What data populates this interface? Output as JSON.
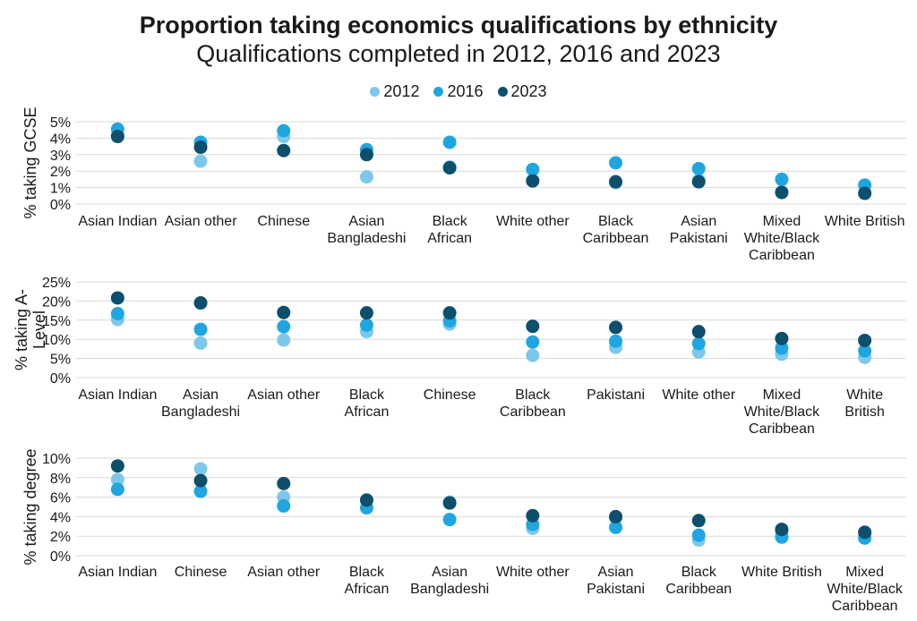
{
  "chart_data": {
    "title": "Proportion taking economics qualifications by ethnicity",
    "subtitle": "Qualifications completed in 2012, 2016 and 2023",
    "legend_position": "top-center",
    "colors": {
      "2012": "#7dc8ea",
      "2016": "#1fa6e0",
      "2023": "#0d4f6c"
    },
    "series_names": [
      "2012",
      "2016",
      "2023"
    ],
    "panels": [
      {
        "type": "scatter",
        "ylabel": "% taking GCSE",
        "ylim": [
          0,
          5
        ],
        "yticks": [
          0,
          1,
          2,
          3,
          4,
          5
        ],
        "ytick_labels": [
          "0%",
          "1%",
          "2%",
          "3%",
          "4%",
          "5%"
        ],
        "grid": true,
        "categories": [
          "Asian Indian",
          "Asian other",
          "Chinese",
          "Asian Bangladeshi",
          "Black African",
          "White other",
          "Black Caribbean",
          "Asian Pakistani",
          "Mixed White/Black Caribbean",
          "White British"
        ],
        "category_lines": [
          [
            "Asian Indian"
          ],
          [
            "Asian other"
          ],
          [
            "Chinese"
          ],
          [
            "Asian",
            "Bangladeshi"
          ],
          [
            "Black",
            "African"
          ],
          [
            "White other"
          ],
          [
            "Black",
            "Caribbean"
          ],
          [
            "Asian",
            "Pakistani"
          ],
          [
            "Mixed",
            "White/Black",
            "Caribbean"
          ],
          [
            "White British"
          ]
        ],
        "series": [
          {
            "name": "2012",
            "values": [
              4.2,
              2.6,
              4.1,
              1.65,
              2.25,
              1.45,
              1.3,
              1.45,
              0.75,
              0.65
            ]
          },
          {
            "name": "2016",
            "values": [
              4.55,
              3.75,
              4.45,
              3.3,
              3.75,
              2.1,
              2.5,
              2.15,
              1.5,
              1.15
            ]
          },
          {
            "name": "2023",
            "values": [
              4.1,
              3.45,
              3.25,
              3.0,
              2.2,
              1.4,
              1.35,
              1.35,
              0.7,
              0.65
            ]
          }
        ]
      },
      {
        "type": "scatter",
        "ylabel": "% taking A-Level",
        "ylabel_lines": [
          "% taking A-",
          "Level"
        ],
        "ylim": [
          0,
          25
        ],
        "yticks": [
          0,
          5,
          10,
          15,
          20,
          25
        ],
        "ytick_labels": [
          "0%",
          "5%",
          "10%",
          "15%",
          "20%",
          "25%"
        ],
        "grid": true,
        "categories": [
          "Asian Indian",
          "Asian Bangladeshi",
          "Asian other",
          "Black African",
          "Chinese",
          "Black Caribbean",
          "Pakistani",
          "White other",
          "Mixed White/Black Caribbean",
          "White British"
        ],
        "category_lines": [
          [
            "Asian Indian"
          ],
          [
            "Asian",
            "Bangladeshi"
          ],
          [
            "Asian other"
          ],
          [
            "Black",
            "African"
          ],
          [
            "Chinese"
          ],
          [
            "Black",
            "Caribbean"
          ],
          [
            "Pakistani"
          ],
          [
            "White other"
          ],
          [
            "Mixed",
            "White/Black",
            "Caribbean"
          ],
          [
            "White",
            "British"
          ]
        ],
        "series": [
          {
            "name": "2012",
            "values": [
              15.2,
              9.0,
              9.8,
              12.0,
              14.0,
              5.8,
              7.9,
              6.7,
              6.1,
              5.3
            ]
          },
          {
            "name": "2016",
            "values": [
              16.7,
              12.6,
              13.3,
              13.7,
              14.8,
              9.3,
              9.5,
              8.9,
              7.7,
              7.0
            ]
          },
          {
            "name": "2023",
            "values": [
              20.8,
              19.5,
              17.0,
              16.9,
              16.9,
              13.4,
              13.1,
              12.0,
              10.2,
              9.7
            ]
          }
        ]
      },
      {
        "type": "scatter",
        "ylabel": "% taking degree",
        "ylim": [
          0,
          10
        ],
        "yticks": [
          0,
          2,
          4,
          6,
          8,
          10
        ],
        "ytick_labels": [
          "0%",
          "2%",
          "4%",
          "6%",
          "8%",
          "10%"
        ],
        "grid": true,
        "categories": [
          "Asian Indian",
          "Chinese",
          "Asian other",
          "Black African",
          "Asian Bangladeshi",
          "White other",
          "Asian Pakistani",
          "Black Caribbean",
          "White British",
          "Mixed White/Black Caribbean"
        ],
        "category_lines": [
          [
            "Asian Indian"
          ],
          [
            "Chinese"
          ],
          [
            "Asian other"
          ],
          [
            "Black",
            "African"
          ],
          [
            "Asian",
            "Bangladeshi"
          ],
          [
            "White other"
          ],
          [
            "Asian",
            "Pakistani"
          ],
          [
            "Black",
            "Caribbean"
          ],
          [
            "White British"
          ],
          [
            "Mixed",
            "White/Black",
            "Caribbean"
          ]
        ],
        "series": [
          {
            "name": "2012",
            "values": [
              7.8,
              8.9,
              6.0,
              5.7,
              5.5,
              2.8,
              3.9,
              1.6,
              2.4,
              2.1
            ]
          },
          {
            "name": "2016",
            "values": [
              6.8,
              6.6,
              5.1,
              4.9,
              3.7,
              3.2,
              2.9,
              2.1,
              1.9,
              1.8
            ]
          },
          {
            "name": "2023",
            "values": [
              9.2,
              7.7,
              7.4,
              5.7,
              5.4,
              4.1,
              4.0,
              3.6,
              2.7,
              2.4
            ]
          }
        ]
      }
    ]
  }
}
